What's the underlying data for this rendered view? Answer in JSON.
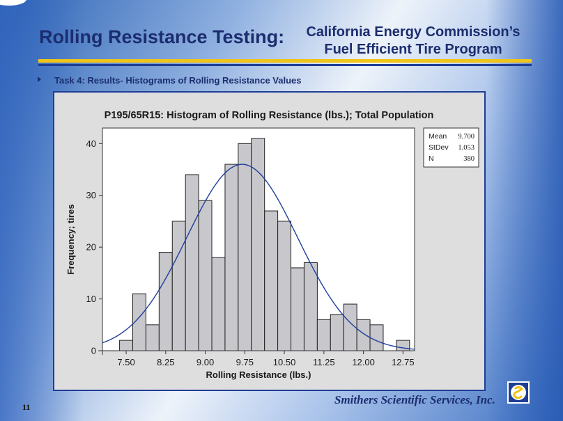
{
  "header": {
    "title_left": "Rolling Resistance Testing:",
    "title_right_line1": "California Energy Commission’s",
    "title_right_line2": "Fuel Efficient Tire Program"
  },
  "task": {
    "text": "Task 4: Results- Histograms of Rolling Resistance Values"
  },
  "footer": {
    "page_number": "11",
    "company": "Smithers Scientific Services, Inc."
  },
  "chart_data": {
    "type": "histogram",
    "title": "P195/65R15: Histogram of Rolling Resistance (lbs.); Total Population",
    "xlabel": "Rolling Resistance (lbs.)",
    "ylabel": "Frequency; tires",
    "xlim": [
      7.05,
      12.97
    ],
    "ylim": [
      0,
      43
    ],
    "x_ticks": [
      7.5,
      8.25,
      9.0,
      9.75,
      10.5,
      11.25,
      12.0,
      12.75
    ],
    "x_tick_labels": [
      "7.50",
      "8.25",
      "9.00",
      "9.75",
      "10.50",
      "11.25",
      "12.00",
      "12.75"
    ],
    "y_ticks": [
      0,
      10,
      20,
      30,
      40
    ],
    "y_tick_labels": [
      "0",
      "10",
      "20",
      "30",
      "40"
    ],
    "bin_width": 0.25,
    "bins": [
      {
        "center": 7.5,
        "count": 2
      },
      {
        "center": 7.75,
        "count": 11
      },
      {
        "center": 8.0,
        "count": 5
      },
      {
        "center": 8.25,
        "count": 19
      },
      {
        "center": 8.5,
        "count": 25
      },
      {
        "center": 8.75,
        "count": 34
      },
      {
        "center": 9.0,
        "count": 29
      },
      {
        "center": 9.25,
        "count": 18
      },
      {
        "center": 9.5,
        "count": 36
      },
      {
        "center": 9.75,
        "count": 40
      },
      {
        "center": 10.0,
        "count": 41
      },
      {
        "center": 10.25,
        "count": 27
      },
      {
        "center": 10.5,
        "count": 25
      },
      {
        "center": 10.75,
        "count": 16
      },
      {
        "center": 11.0,
        "count": 17
      },
      {
        "center": 11.25,
        "count": 6
      },
      {
        "center": 11.5,
        "count": 7
      },
      {
        "center": 11.75,
        "count": 9
      },
      {
        "center": 12.0,
        "count": 6
      },
      {
        "center": 12.25,
        "count": 5
      },
      {
        "center": 12.5,
        "count": 0
      },
      {
        "center": 12.75,
        "count": 2
      }
    ],
    "fit_curve": {
      "type": "normal",
      "mean": 9.7,
      "stdev": 1.053,
      "n": 380
    },
    "stats_box": {
      "position": "top-right",
      "rows": [
        {
          "label": "Mean",
          "value": "9.700"
        },
        {
          "label": "StDev",
          "value": "1.053"
        },
        {
          "label": "N",
          "value": "380"
        }
      ]
    },
    "colors": {
      "bar_fill": "#c7c7cc",
      "bar_stroke": "#222222",
      "curve": "#1f3d9c",
      "plot_bg": "#ffffff"
    }
  }
}
